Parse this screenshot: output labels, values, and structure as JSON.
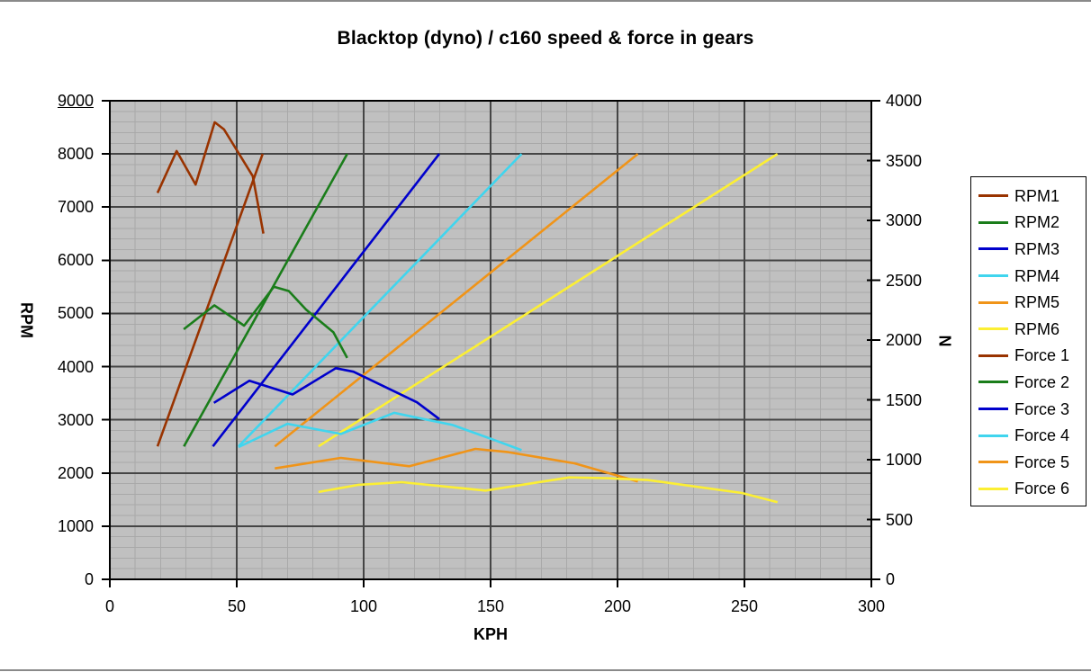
{
  "title": "Blacktop (dyno) / c160 speed & force in gears",
  "chart_data": {
    "type": "line",
    "title": "Blacktop (dyno) / c160 speed & force in gears",
    "xlabel": "KPH",
    "ylabel_left": "RPM",
    "ylabel_right": "N",
    "plot_bg": "#C0C0C0",
    "grid_minor_color": "#A9A9A9",
    "grid_major_color": "#454545",
    "axis_color": "#000000",
    "legend_position": "right",
    "x": {
      "min": 0,
      "max": 300,
      "major": 50,
      "minor": 10,
      "ticks": [
        0,
        50,
        100,
        150,
        200,
        250,
        300
      ]
    },
    "y_left": {
      "min": 0,
      "max": 9000,
      "major": 1000,
      "minor": 200,
      "ticks": [
        0,
        1000,
        2000,
        3000,
        4000,
        5000,
        6000,
        7000,
        8000,
        9000
      ],
      "underlined_tick": 9000
    },
    "y_right": {
      "min": 0,
      "max": 4000,
      "major": 500,
      "ticks": [
        0,
        500,
        1000,
        1500,
        2000,
        2500,
        3000,
        3500,
        4000
      ]
    },
    "series": [
      {
        "name": "RPM1",
        "axis": "left",
        "color": "#993300",
        "points": [
          [
            18.8,
            2500
          ],
          [
            60.2,
            8000
          ]
        ]
      },
      {
        "name": "RPM2",
        "axis": "left",
        "color": "#1A7D1A",
        "points": [
          [
            29.2,
            2500
          ],
          [
            93.5,
            8000
          ]
        ]
      },
      {
        "name": "RPM3",
        "axis": "left",
        "color": "#0000CC",
        "points": [
          [
            40.6,
            2500
          ],
          [
            129.8,
            8000
          ]
        ]
      },
      {
        "name": "RPM4",
        "axis": "left",
        "color": "#40D5EE",
        "points": [
          [
            50.7,
            2500
          ],
          [
            162.2,
            8000
          ]
        ]
      },
      {
        "name": "RPM5",
        "axis": "left",
        "color": "#F09418",
        "points": [
          [
            65,
            2500
          ],
          [
            208,
            8000
          ]
        ]
      },
      {
        "name": "RPM6",
        "axis": "left",
        "color": "#FCEF33",
        "points": [
          [
            82.2,
            2500
          ],
          [
            263,
            8000
          ]
        ]
      },
      {
        "name": "Force 1",
        "axis": "right",
        "color": "#993300",
        "points": [
          [
            18.8,
            3230
          ],
          [
            26.3,
            3580
          ],
          [
            33.8,
            3300
          ],
          [
            41.3,
            3820
          ],
          [
            45,
            3760
          ],
          [
            56.3,
            3370
          ],
          [
            60.5,
            2890
          ]
        ]
      },
      {
        "name": "Force 2",
        "axis": "right",
        "color": "#1A7D1A",
        "points": [
          [
            29.1,
            2090
          ],
          [
            41.2,
            2290
          ],
          [
            52.9,
            2120
          ],
          [
            64.6,
            2445
          ],
          [
            70.5,
            2410
          ],
          [
            77.3,
            2255
          ],
          [
            88.1,
            2065
          ],
          [
            93.5,
            1850
          ]
        ]
      },
      {
        "name": "Force 3",
        "axis": "right",
        "color": "#0000CC",
        "points": [
          [
            41,
            1475
          ],
          [
            55,
            1660
          ],
          [
            72,
            1545
          ],
          [
            89,
            1765
          ],
          [
            96,
            1735
          ],
          [
            121,
            1480
          ],
          [
            129.8,
            1340
          ]
        ]
      },
      {
        "name": "Force 4",
        "axis": "right",
        "color": "#40D5EE",
        "points": [
          [
            50.7,
            1105
          ],
          [
            70,
            1300
          ],
          [
            91,
            1215
          ],
          [
            112,
            1392
          ],
          [
            120,
            1356
          ],
          [
            135,
            1290
          ],
          [
            152,
            1160
          ],
          [
            162.2,
            1080
          ]
        ]
      },
      {
        "name": "Force 5",
        "axis": "right",
        "color": "#F09418",
        "points": [
          [
            65,
            927
          ],
          [
            91,
            1015
          ],
          [
            118,
            945
          ],
          [
            144,
            1090
          ],
          [
            157,
            1063
          ],
          [
            183,
            970
          ],
          [
            208,
            818
          ]
        ]
      },
      {
        "name": "Force 6",
        "axis": "right",
        "color": "#FCEF33",
        "points": [
          [
            82.2,
            730
          ],
          [
            98,
            790
          ],
          [
            115,
            812
          ],
          [
            148,
            742
          ],
          [
            181,
            852
          ],
          [
            196,
            845
          ],
          [
            212,
            830
          ],
          [
            249,
            722
          ],
          [
            263,
            645
          ]
        ]
      }
    ],
    "legend": [
      "RPM1",
      "RPM2",
      "RPM3",
      "RPM4",
      "RPM5",
      "RPM6",
      "Force 1",
      "Force 2",
      "Force 3",
      "Force 4",
      "Force 5",
      "Force 6"
    ]
  }
}
